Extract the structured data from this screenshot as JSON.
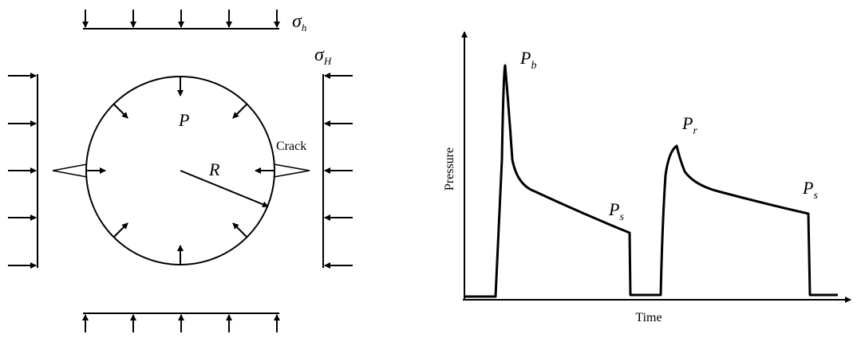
{
  "stress_labels": {
    "sigma_h": {
      "base": "σ",
      "sub": "h"
    },
    "sigma_H": {
      "base": "σ",
      "sub": "H"
    }
  },
  "borehole_labels": {
    "pressure": "P",
    "radius": "R",
    "crack": "Crack"
  },
  "curve_labels": {
    "breakdown": {
      "base": "P",
      "sub": "b"
    },
    "reopening": {
      "base": "P",
      "sub": "r"
    },
    "shut_in_1": {
      "base": "P",
      "sub": "s"
    },
    "shut_in_2": {
      "base": "P",
      "sub": "s"
    }
  },
  "axes": {
    "y_label": "Pressure",
    "x_label": "Time"
  }
}
